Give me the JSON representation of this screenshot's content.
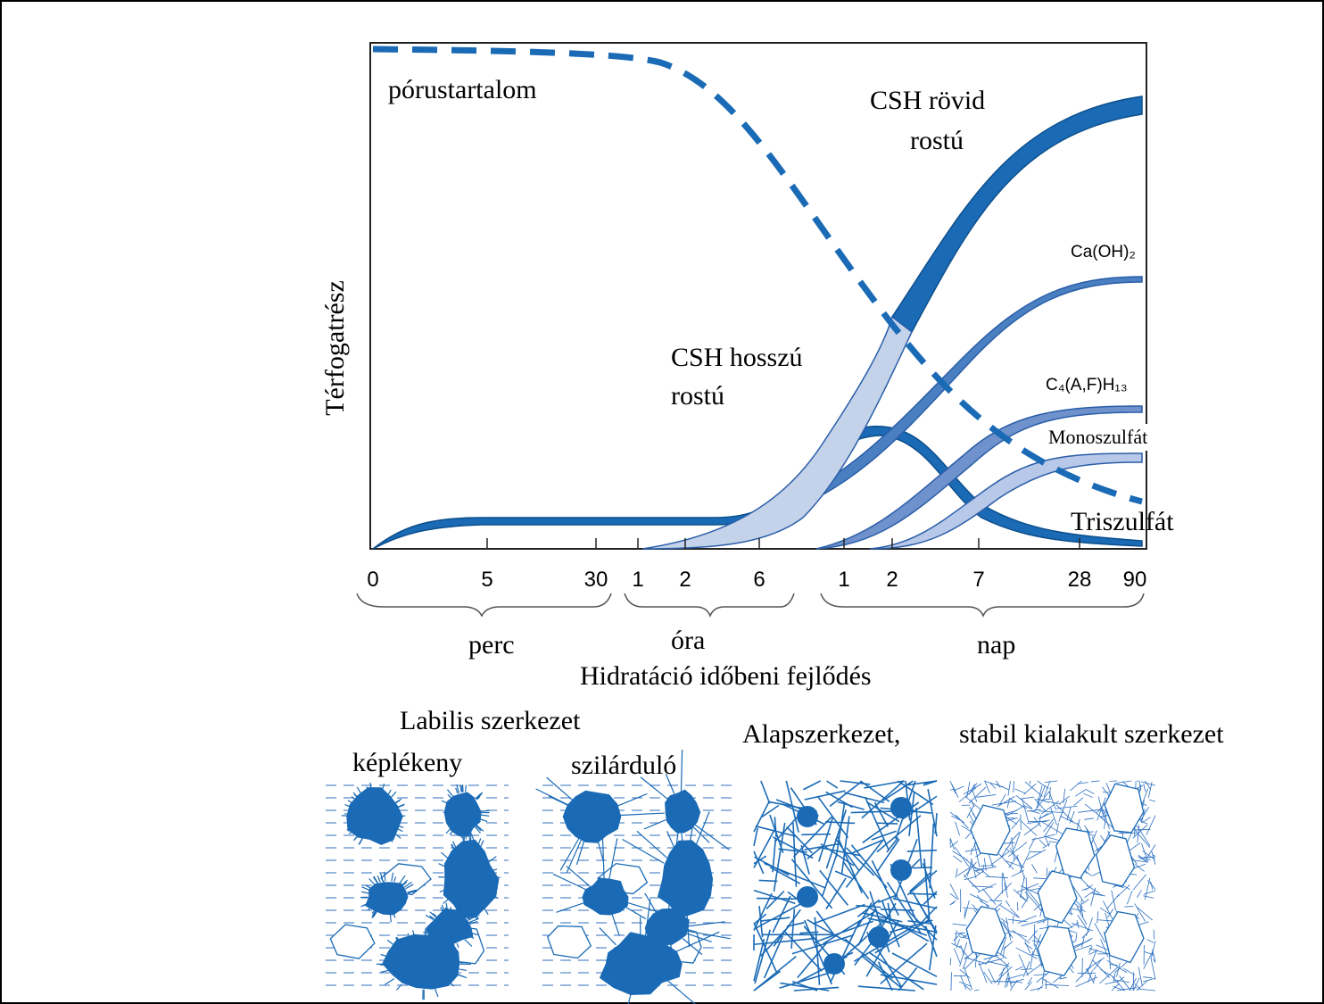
{
  "y_label": "Térfogatrész",
  "x_ticks": [
    "0",
    "5",
    "30",
    "1",
    "2",
    "6",
    "1",
    "2",
    "7",
    "28",
    "90"
  ],
  "time_units": [
    "perc",
    "óra",
    "nap"
  ],
  "title": "Hidratáció időbeni fejlődés",
  "curve_labels": {
    "pores": "pórustartalom",
    "csh_short": [
      "CSH rövid",
      "rostú"
    ],
    "csh_long": [
      "CSH hosszú",
      "rostú"
    ],
    "caoh": "Ca(OH)₂",
    "c4afh": "C₄(A,F)H₁₃",
    "mono": "Monoszulfát",
    "tri": "Triszulfát"
  },
  "panels": {
    "labile": "Labilis szerkezet",
    "plastic": "képlékeny",
    "hardening": "szilárduló",
    "base": "Alapszerkezet,",
    "stable": "stabil kialakult szerkezet"
  }
}
